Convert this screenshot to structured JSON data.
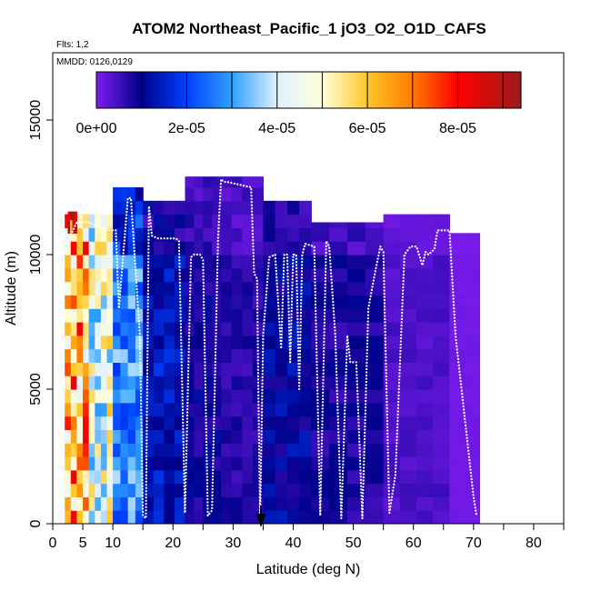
{
  "chart_data": {
    "type": "heatmap",
    "title": "ATOM2 Northeast_Pacific_1 jO3_O2_O1D_CAFS",
    "subtitle_flights": "Flts: 1,2",
    "subtitle_dates": "MMDD: 0126,0129",
    "xlabel": "Latitude (deg N)",
    "ylabel": "Altitude (m)",
    "xlim": [
      0,
      85
    ],
    "ylim": [
      0,
      17500
    ],
    "x_ticks": [
      0,
      5,
      10,
      20,
      30,
      40,
      50,
      60,
      70,
      80
    ],
    "x_tick_marks": [
      0,
      5,
      10,
      15,
      20,
      25,
      30,
      35,
      40,
      45,
      50,
      55,
      60,
      65,
      70,
      75,
      80,
      85
    ],
    "y_ticks": [
      0,
      5000,
      10000,
      15000
    ],
    "colorbar": {
      "range": [
        0,
        9.4e-05
      ],
      "ticks": [
        "0e+00",
        "2e-05",
        "4e-05",
        "6e-05",
        "8e-05"
      ],
      "tick_values": [
        0,
        2e-05,
        4e-05,
        6e-05,
        8e-05
      ],
      "stops": [
        "#7f1cf0",
        "#00008a",
        "#0040ff",
        "#2fa0ff",
        "#dff0ff",
        "#ffffd9",
        "#ffc629",
        "#ff7a00",
        "#ff0000",
        "#9b1b1b"
      ],
      "stop_values": [
        0,
        1e-05,
        2e-05,
        3e-05,
        4e-05,
        5e-05,
        6e-05,
        7e-05,
        8e-05,
        9.4e-05
      ]
    },
    "regions": [
      {
        "lat": [
          2,
          6
        ],
        "alt": [
          0,
          11500
        ],
        "value": 6.2e-05
      },
      {
        "lat": [
          2.5,
          4
        ],
        "alt": [
          10800,
          11600
        ],
        "value": 8.6e-05
      },
      {
        "lat": [
          6,
          10
        ],
        "alt": [
          0,
          11500
        ],
        "value": 4.5e-05
      },
      {
        "lat": [
          10,
          15
        ],
        "alt": [
          0,
          12500
        ],
        "value": 2.8e-05
      },
      {
        "lat": [
          15,
          22
        ],
        "alt": [
          0,
          12000
        ],
        "value": 1.4e-05
      },
      {
        "lat": [
          22,
          28
        ],
        "alt": [
          0,
          12900
        ],
        "value": 9e-06
      },
      {
        "lat": [
          28,
          35
        ],
        "alt": [
          0,
          12900
        ],
        "value": 7e-06
      },
      {
        "lat": [
          35,
          43
        ],
        "alt": [
          0,
          12000
        ],
        "value": 1.1e-05
      },
      {
        "lat": [
          43,
          55
        ],
        "alt": [
          0,
          11200
        ],
        "value": 8e-06
      },
      {
        "lat": [
          55,
          66
        ],
        "alt": [
          0,
          11500
        ],
        "value": 4e-06
      },
      {
        "lat": [
          66,
          71
        ],
        "alt": [
          0,
          10800
        ],
        "value": 1e-06
      }
    ],
    "flight_track_lat": [
      2.5,
      4,
      5,
      6,
      7,
      8,
      9.5,
      10.5,
      11,
      12.5,
      13,
      14.5,
      15,
      15.5,
      16,
      16.5,
      17.5,
      19,
      20.5,
      21,
      22,
      23,
      23.5,
      24.5,
      25,
      25.8,
      26.5,
      27.5,
      28,
      28.5,
      29,
      31,
      33,
      33.5,
      34,
      34.2,
      34.5,
      35,
      36,
      37,
      38,
      38.5,
      39,
      39.5,
      40,
      40.5,
      41,
      41.5,
      42,
      43.5,
      44.5,
      45.5,
      46,
      47,
      48,
      49,
      49.5,
      50.5,
      51.5,
      52.5,
      53.5,
      54.5,
      55,
      56,
      57,
      58.5,
      59.5,
      60.5,
      61.5,
      62,
      62.5,
      63.5,
      64,
      65,
      66,
      67,
      68,
      69,
      70,
      70.5
    ],
    "flight_track_alt": [
      10500,
      11200,
      11200,
      11200,
      11100,
      11000,
      10900,
      10900,
      8000,
      12100,
      12100,
      7000,
      300,
      200,
      11800,
      10700,
      10600,
      10600,
      10600,
      10500,
      400,
      9900,
      10000,
      10000,
      9800,
      300,
      500,
      10600,
      12800,
      12700,
      12700,
      12600,
      12500,
      9300,
      9100,
      5000,
      200,
      7000,
      9900,
      10000,
      6500,
      10000,
      10000,
      6000,
      10000,
      10000,
      5000,
      10000,
      10400,
      10300,
      300,
      10500,
      10300,
      7000,
      200,
      7000,
      6000,
      6000,
      200,
      8000,
      9200,
      10300,
      10100,
      400,
      1800,
      10000,
      10300,
      10300,
      9600,
      10100,
      10000,
      10200,
      10900,
      10900,
      10900,
      7000,
      5000,
      3000,
      1000,
      300
    ]
  }
}
